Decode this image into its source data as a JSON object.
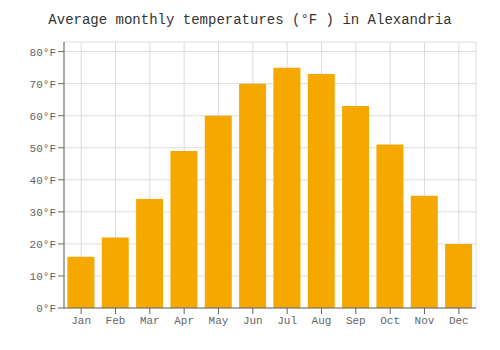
{
  "chart_data": {
    "type": "bar",
    "title": "Average monthly temperatures (°F ) in Alexandria",
    "categories": [
      "Jan",
      "Feb",
      "Mar",
      "Apr",
      "May",
      "Jun",
      "Jul",
      "Aug",
      "Sep",
      "Oct",
      "Nov",
      "Dec"
    ],
    "values": [
      16,
      22,
      34,
      49,
      60,
      70,
      75,
      73,
      63,
      51,
      35,
      20
    ],
    "color": "#F5A800",
    "ylim": [
      0,
      83
    ],
    "yticks": [
      {
        "value": 0,
        "label": "0°F"
      },
      {
        "value": 10,
        "label": "10°F"
      },
      {
        "value": 20,
        "label": "20°F"
      },
      {
        "value": 30,
        "label": "30°F"
      },
      {
        "value": 40,
        "label": "40°F"
      },
      {
        "value": 50,
        "label": "50°F"
      },
      {
        "value": 60,
        "label": "60°F"
      },
      {
        "value": 70,
        "label": "70°F"
      },
      {
        "value": 80,
        "label": "80°F"
      }
    ],
    "grid": true
  }
}
